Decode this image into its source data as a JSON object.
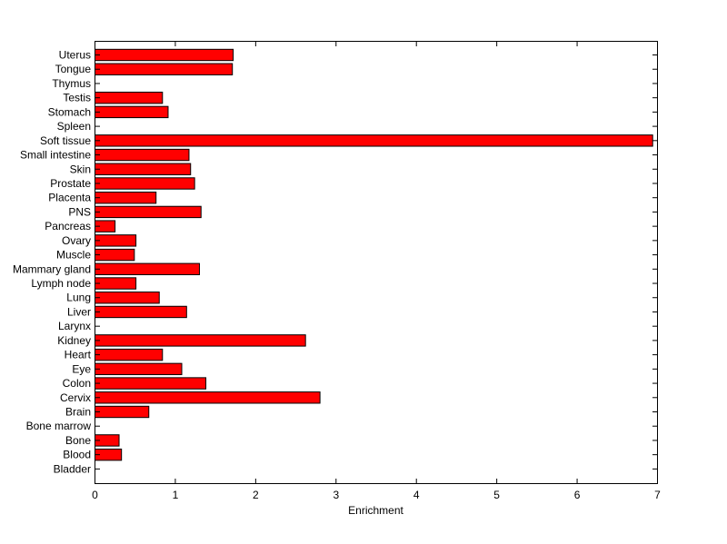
{
  "chart_data": {
    "type": "bar",
    "orientation": "horizontal",
    "title": "",
    "xlabel": "Enrichment",
    "ylabel": "",
    "xlim": [
      0,
      7
    ],
    "xticks": [
      0,
      1,
      2,
      3,
      4,
      5,
      6,
      7
    ],
    "grid": false,
    "legend": "none",
    "bar_color": "#ff0000",
    "edge_color": "#000000",
    "categories": [
      "Uterus",
      "Tongue",
      "Thymus",
      "Testis",
      "Stomach",
      "Spleen",
      "Soft tissue",
      "Small intestine",
      "Skin",
      "Prostate",
      "Placenta",
      "PNS",
      "Pancreas",
      "Ovary",
      "Muscle",
      "Mammary gland",
      "Lymph node",
      "Lung",
      "Liver",
      "Larynx",
      "Kidney",
      "Heart",
      "Eye",
      "Colon",
      "Cervix",
      "Brain",
      "Bone marrow",
      "Bone",
      "Blood",
      "Bladder"
    ],
    "values": [
      1.72,
      1.71,
      0,
      0.84,
      0.91,
      0,
      6.94,
      1.17,
      1.19,
      1.24,
      0.76,
      1.32,
      0.25,
      0.51,
      0.49,
      1.3,
      0.51,
      0.8,
      1.14,
      0,
      2.62,
      0.84,
      1.08,
      1.38,
      2.8,
      0.67,
      0,
      0.3,
      0.33,
      0
    ]
  }
}
